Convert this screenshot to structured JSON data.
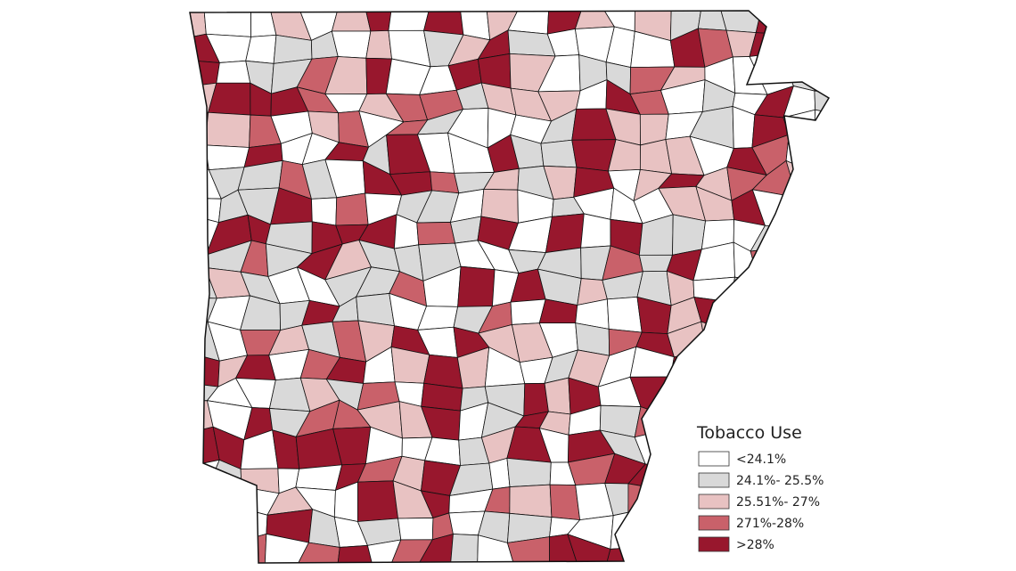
{
  "legend": {
    "title": "Tobacco Use",
    "items": [
      {
        "label": "<24.1%",
        "color": "#ffffff"
      },
      {
        "label": "24.1%- 25.5%",
        "color": "#d9d9d9"
      },
      {
        "label": "25.51%- 27%",
        "color": "#e8c2c2"
      },
      {
        "label": "271%-28%",
        "color": "#c9616a"
      },
      {
        "label": ">28%",
        "color": "#98172d"
      }
    ]
  }
}
